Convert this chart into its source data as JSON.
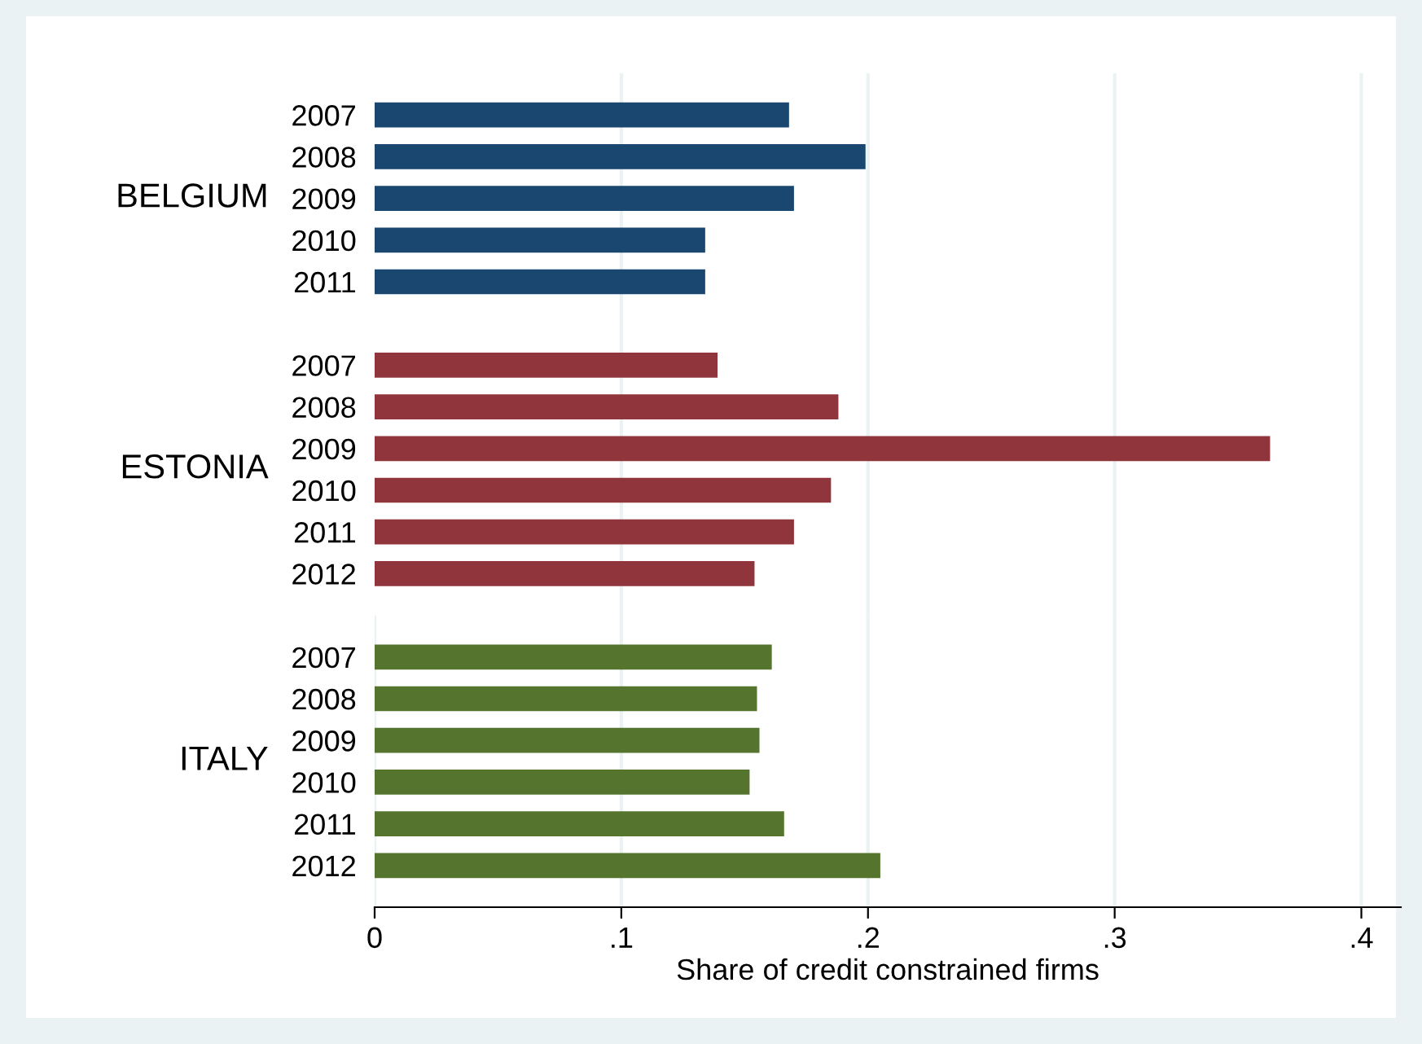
{
  "chart_data": [
    {
      "type": "bar",
      "orientation": "horizontal",
      "ylabel": "BELGIUM",
      "categories": [
        "2007",
        "2008",
        "2009",
        "2010",
        "2011"
      ],
      "values": [
        0.168,
        0.199,
        0.17,
        0.134,
        0.134
      ],
      "color": "#1a476f",
      "xlim": [
        0,
        0.416
      ],
      "xticks": [
        0.1,
        0.2,
        0.3,
        0.4
      ],
      "grid": "x",
      "tick_labels": "y"
    },
    {
      "type": "bar",
      "orientation": "horizontal",
      "ylabel": "ESTONIA",
      "categories": [
        "2007",
        "2008",
        "2009",
        "2010",
        "2011",
        "2012"
      ],
      "values": [
        0.139,
        0.188,
        0.363,
        0.185,
        0.17,
        0.154
      ],
      "color": "#90353b",
      "xlim": [
        0,
        0.416
      ],
      "xticks": [
        0.1,
        0.2,
        0.3,
        0.4
      ],
      "grid": "x",
      "tick_labels": "y"
    },
    {
      "type": "bar",
      "orientation": "horizontal",
      "ylabel": "ITALY",
      "xlabel": "Share of credit constrained firms",
      "categories": [
        "2007",
        "2008",
        "2009",
        "2010",
        "2011",
        "2012"
      ],
      "values": [
        0.161,
        0.155,
        0.156,
        0.152,
        0.166,
        0.205
      ],
      "color": "#55752f",
      "xlim": [
        0,
        0.416
      ],
      "xticks": [
        0,
        {
          "value": 0.1,
          "label": ".1"
        },
        {
          "value": 0.2,
          "label": ".2"
        },
        {
          "value": 0.3,
          "label": ".3"
        },
        {
          "value": 0.4,
          "label": ".4"
        }
      ],
      "grid": "x"
    }
  ]
}
